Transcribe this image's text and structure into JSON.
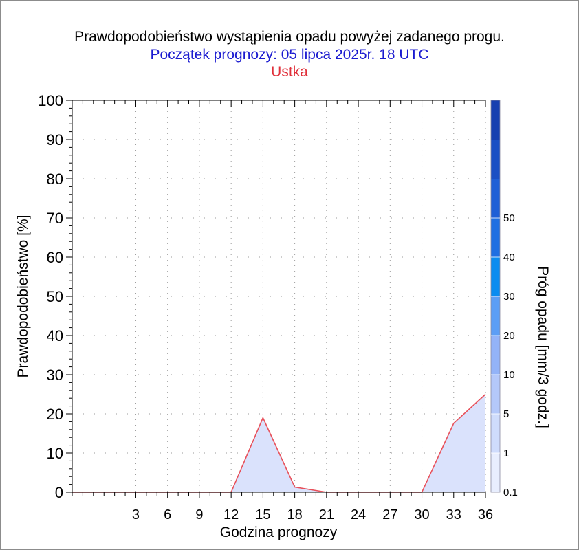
{
  "header": {
    "title": "Prawdopodobieństwo wystąpienia opadu powyżej zadanego progu.",
    "subtitle": "Początek prognozy: 05 lipca 2025r. 18 UTC",
    "location": "Ustka"
  },
  "chart_data": {
    "type": "area",
    "xlabel": "Godzina prognozy",
    "ylabel": "Prawdopodobieństwo [%]",
    "xlim": [
      -3,
      36
    ],
    "ylim": [
      0,
      100
    ],
    "x_ticks": [
      3,
      6,
      9,
      12,
      15,
      18,
      21,
      24,
      27,
      30,
      33,
      36
    ],
    "y_ticks": [
      0,
      10,
      20,
      30,
      40,
      50,
      60,
      70,
      80,
      90,
      100
    ],
    "grid": true,
    "series": [
      {
        "x": [
          -3,
          0,
          3,
          6,
          9,
          12,
          15,
          18,
          21,
          24,
          27,
          30,
          33,
          36
        ],
        "values": [
          0,
          0,
          0,
          0,
          0,
          0,
          19,
          1.3,
          0,
          0,
          0,
          0,
          17.6,
          25
        ],
        "line_color": "#e8505a",
        "fill_color": "#dae2fc"
      }
    ],
    "colorbar": {
      "label": "Próg opadu [mm/3 godz.]",
      "tick_labels": [
        "0.1",
        "1",
        "5",
        "10",
        "20",
        "30",
        "40",
        "50"
      ],
      "colors": [
        "#e8eefe",
        "#cfdcfc",
        "#b4c8fa",
        "#93b3f8",
        "#5c9ef5",
        "#0b8cf0",
        "#1f6fe2",
        "#1f5fd6",
        "#1a4fc4",
        "#173fb0"
      ]
    }
  }
}
